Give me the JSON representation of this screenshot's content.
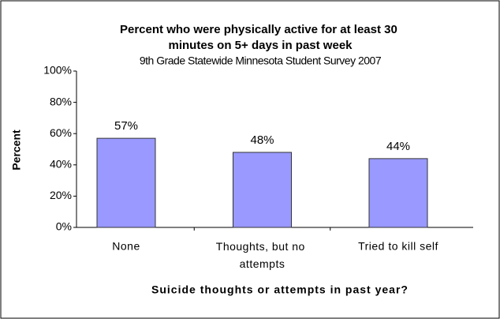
{
  "chart_data": {
    "type": "bar",
    "title": "Percent who were physically active for at least 30 minutes on 5+ days in past week",
    "subtitle": "9th Grade Statewide Minnesota Student Survey 2007",
    "ylabel": "Percent",
    "xlabel": "Suicide thoughts or attempts in past year?",
    "categories": [
      "None",
      "Thoughts, but no attempts",
      "Tried to kill self"
    ],
    "values": [
      57,
      48,
      44
    ],
    "value_labels": [
      "57%",
      "48%",
      "44%"
    ],
    "color": "#9999ff",
    "ylim": [
      0,
      100
    ],
    "yticks": [
      {
        "value": 0,
        "label": "0%"
      },
      {
        "value": 20,
        "label": "20%"
      },
      {
        "value": 40,
        "label": "40%"
      },
      {
        "value": 60,
        "label": "60%"
      },
      {
        "value": 80,
        "label": "80%"
      },
      {
        "value": 100,
        "label": "100%"
      }
    ],
    "grid": false
  }
}
